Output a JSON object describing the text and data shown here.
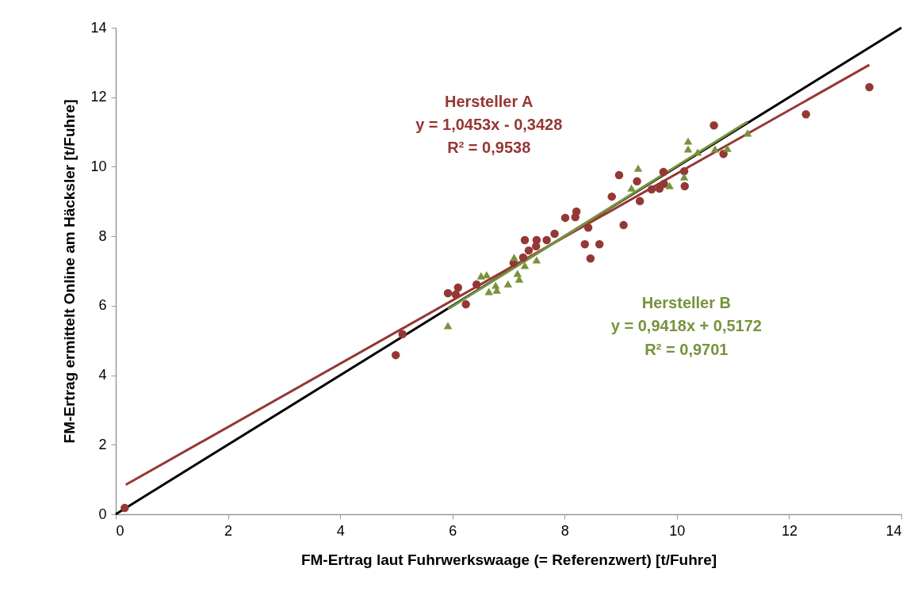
{
  "chart_data": {
    "type": "scatter",
    "xlabel": "FM-Ertrag laut Fuhrwerkswaage (= Referenzwert) [t/Fuhre]",
    "ylabel": "FM-Ertrag ermittelt Online am Häcksler [t/Fuhre]",
    "xlim": [
      0,
      14
    ],
    "ylim": [
      0,
      14
    ],
    "xticks": [
      0,
      2,
      4,
      6,
      8,
      10,
      12,
      14
    ],
    "yticks": [
      0,
      2,
      4,
      6,
      8,
      10,
      12,
      14
    ],
    "grid": false,
    "series": [
      {
        "name": "Hersteller A",
        "color": "#953735",
        "marker": "circle",
        "x": [
          0.16,
          4.99,
          5.11,
          5.92,
          6.06,
          6.1,
          6.24,
          6.43,
          7.09,
          7.26,
          7.36,
          7.29,
          7.5,
          7.49,
          7.68,
          7.82,
          8.01,
          8.21,
          8.19,
          8.42,
          8.36,
          8.62,
          8.46,
          8.84,
          8.97,
          9.05,
          9.29,
          9.34,
          9.55,
          9.69,
          9.77,
          9.76,
          10.13,
          10.14,
          10.66,
          10.83,
          12.3,
          13.43
        ],
        "values": [
          0.18,
          4.58,
          5.18,
          6.36,
          6.32,
          6.52,
          6.04,
          6.61,
          7.23,
          7.39,
          7.59,
          7.89,
          7.89,
          7.71,
          7.89,
          8.07,
          8.53,
          8.71,
          8.55,
          8.25,
          7.77,
          7.77,
          7.36,
          9.14,
          9.76,
          8.32,
          9.58,
          9.01,
          9.35,
          9.37,
          9.51,
          9.85,
          9.87,
          9.44,
          11.19,
          10.37,
          11.51,
          12.29
        ]
      },
      {
        "name": "Hersteller B",
        "color": "#77933c",
        "marker": "triangle",
        "x": [
          5.92,
          6.51,
          6.61,
          6.65,
          6.77,
          6.79,
          6.99,
          7.1,
          7.16,
          7.19,
          7.29,
          7.5,
          9.31,
          9.19,
          9.87,
          10.13,
          10.2,
          10.2,
          10.37,
          10.68,
          10.9,
          11.26
        ],
        "values": [
          5.43,
          6.86,
          6.89,
          6.41,
          6.59,
          6.45,
          6.63,
          7.39,
          6.93,
          6.77,
          7.16,
          7.32,
          9.96,
          9.39,
          9.46,
          9.71,
          10.74,
          10.51,
          10.42,
          10.51,
          10.53,
          10.97
        ]
      },
      {
        "color": "#000000",
        "type": "line",
        "line_style": "solid",
        "x": [
          0,
          14
        ],
        "values": [
          0,
          14
        ]
      },
      {
        "color": "#953735",
        "type": "line",
        "line_style": "solid",
        "x": [
          0.18,
          13.43
        ],
        "values": [
          0.85,
          12.93
        ]
      },
      {
        "color": "#77933c",
        "type": "line",
        "line_style": "solid",
        "x": [
          5.92,
          11.26
        ],
        "values": [
          5.9,
          11.3
        ]
      }
    ],
    "annotations": [
      "y = 1,0453x - 0,3428",
      "R² = 0,9538",
      "y = 0,9418x + 0,5172",
      "R² = 0,9701"
    ]
  }
}
